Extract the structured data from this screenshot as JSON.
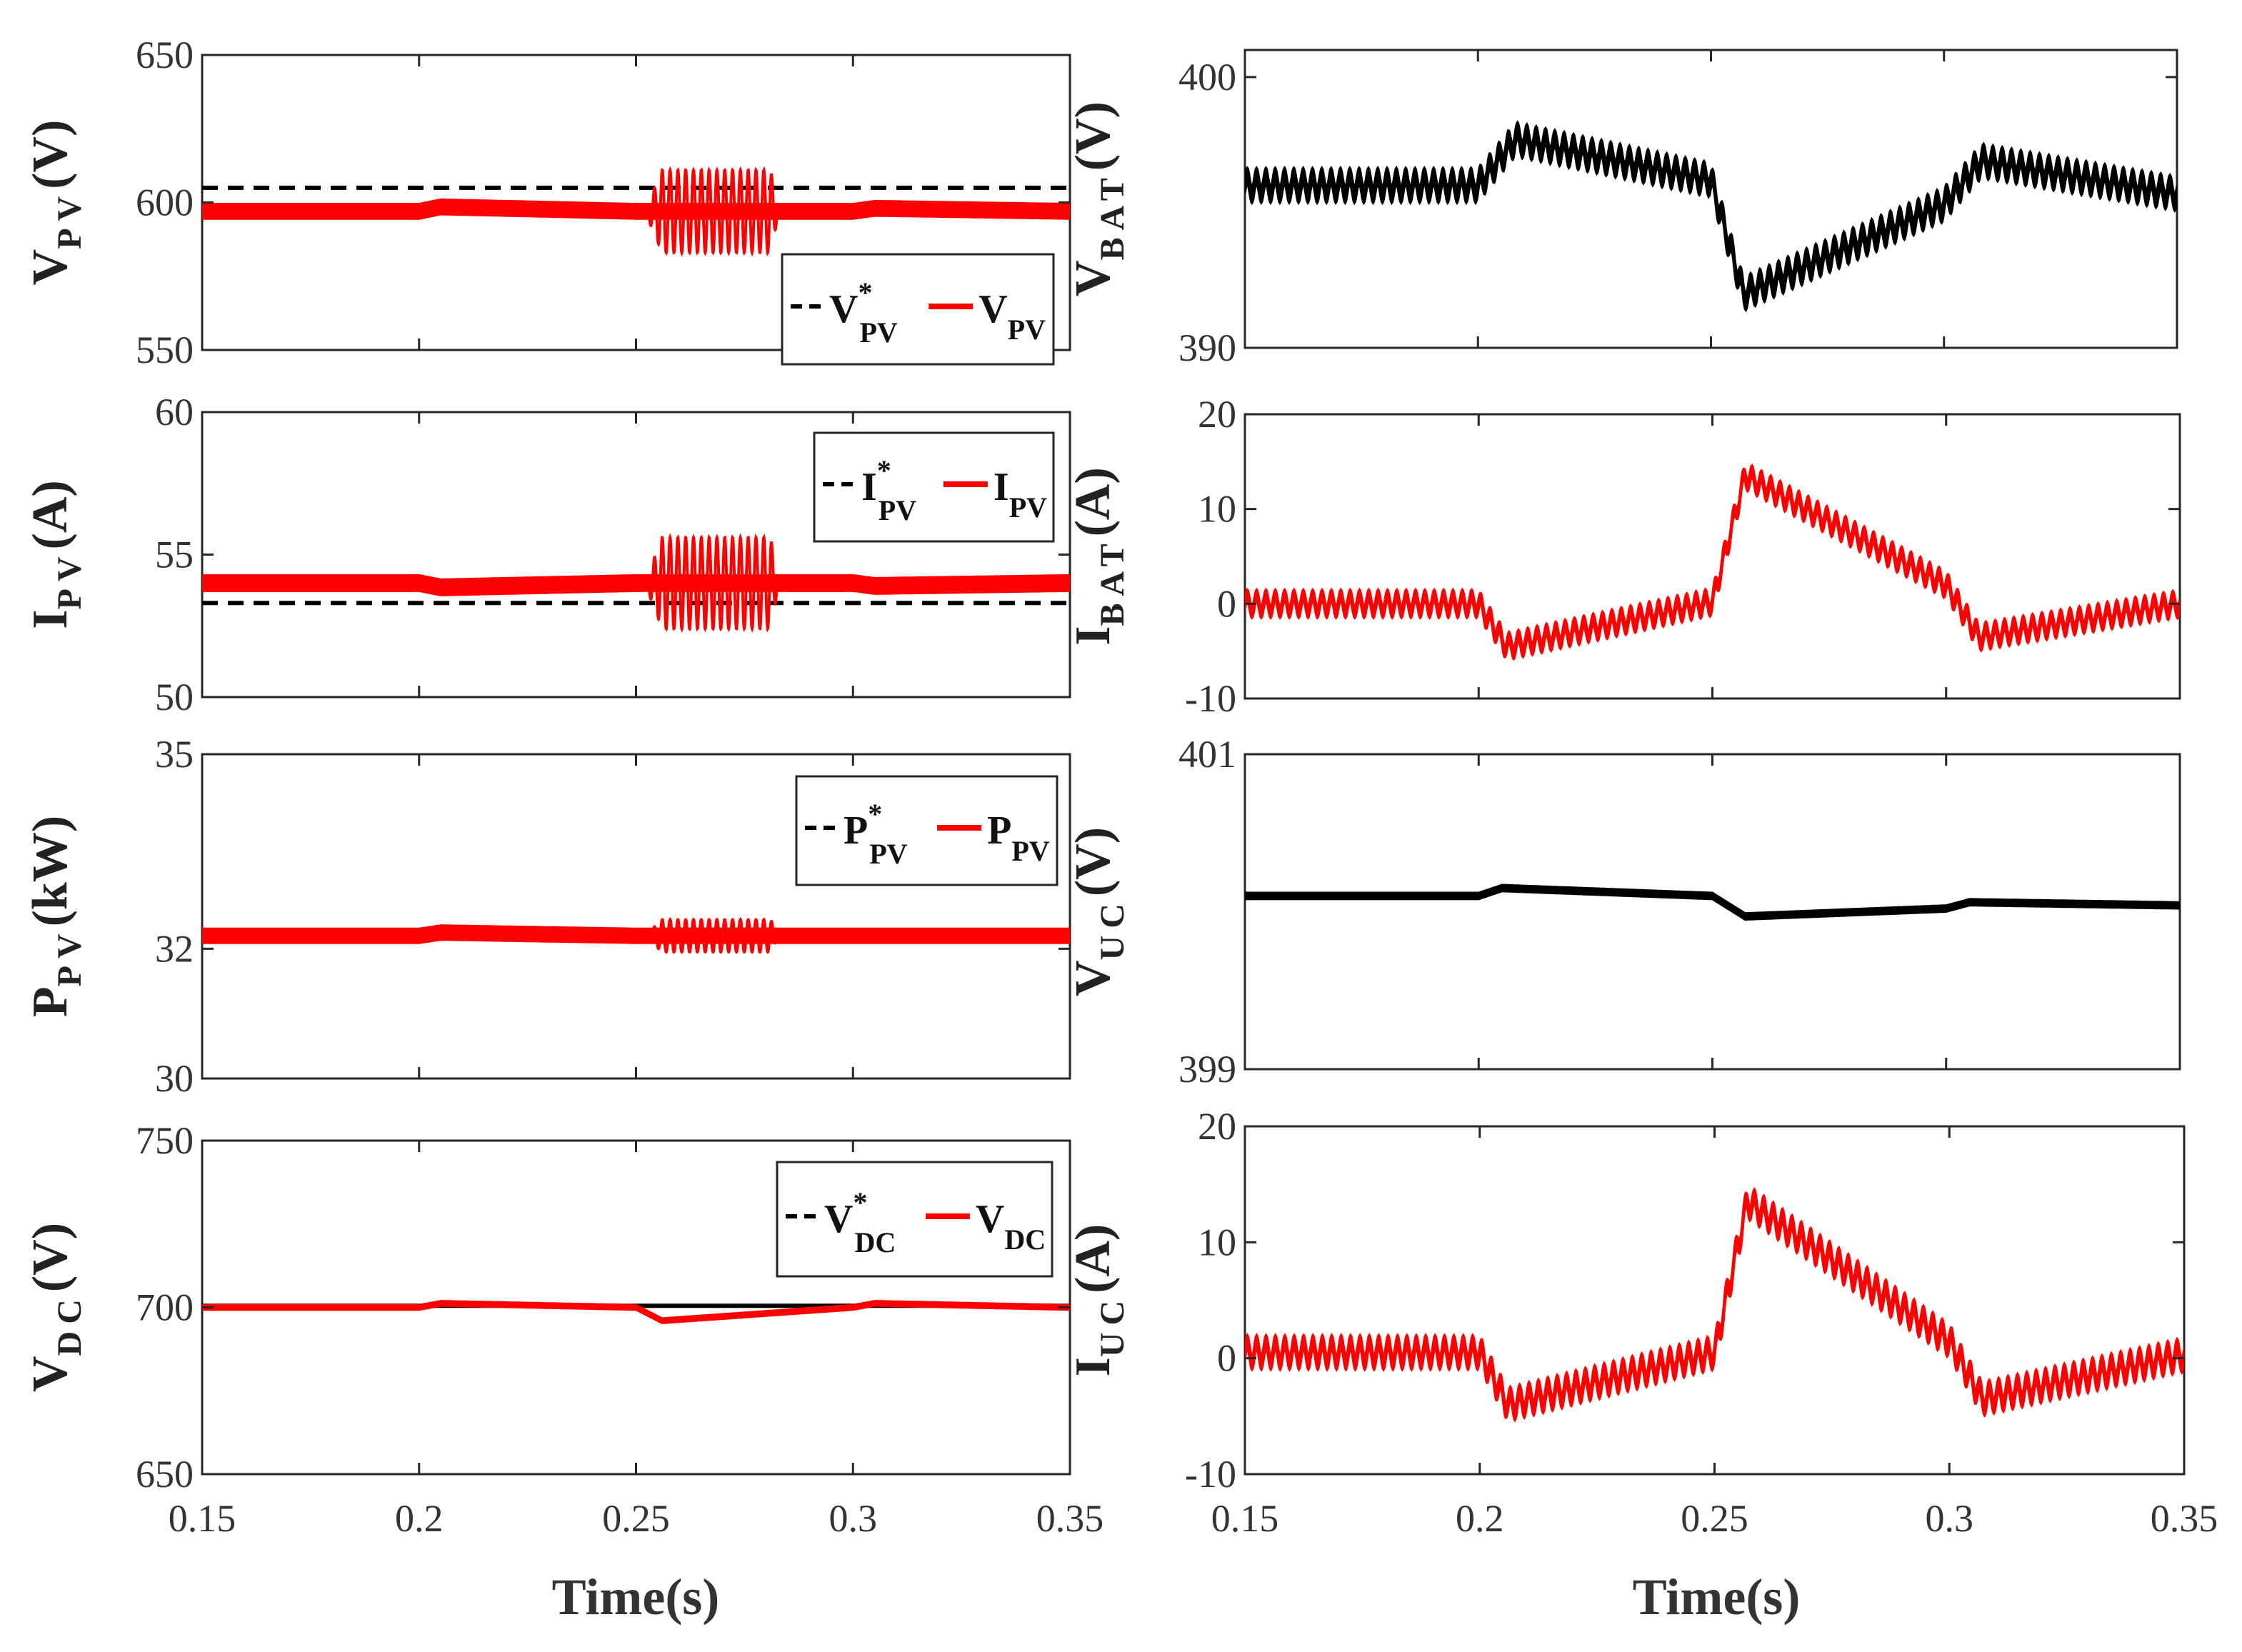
{
  "figure": {
    "x_label": "Time(s)"
  },
  "chart_data": [
    {
      "id": "vpv",
      "type": "line",
      "ylabel_main": "V",
      "ylabel_sub": "PV",
      "ylabel_unit": "(V)",
      "xlim": [
        0.15,
        0.35
      ],
      "ylim": [
        550,
        650
      ],
      "x_ticks": [
        "0.15",
        "0.2",
        "0.25",
        "0.3",
        "0.35"
      ],
      "y_ticks": [
        "650",
        "600",
        "550"
      ],
      "show_x_ticks": false,
      "legend": {
        "position": "bottom-right",
        "ref_main": "V",
        "ref_sup": "*",
        "ref_sub": "PV",
        "meas_main": "V",
        "meas_sub": "PV"
      },
      "series": [
        {
          "name": "V*PV",
          "style": "dashed",
          "color": "#000000",
          "points": [
            [
              0.15,
              605
            ],
            [
              0.35,
              605
            ]
          ]
        },
        {
          "name": "VPV",
          "style": "solid",
          "color": "#ff0000",
          "points": [
            [
              0.15,
              597
            ],
            [
              0.2,
              597
            ],
            [
              0.205,
              598.5
            ],
            [
              0.25,
              597
            ],
            [
              0.3,
              597
            ],
            [
              0.305,
              598
            ],
            [
              0.35,
              597
            ]
          ],
          "band": 5,
          "bursts": [
            {
              "from": 0.252,
              "to": 0.283,
              "amp": 14,
              "osc_period": 0.0018
            }
          ]
        }
      ]
    },
    {
      "id": "vbat",
      "type": "line",
      "ylabel_main": "V",
      "ylabel_sub": "BAT",
      "ylabel_unit": "(V)",
      "xlim": [
        0.15,
        0.35
      ],
      "ylim": [
        390,
        401
      ],
      "x_ticks": [
        "0.15",
        "0.2",
        "0.25",
        "0.3",
        "0.35"
      ],
      "y_ticks": [
        "400",
        "390"
      ],
      "show_x_ticks": false,
      "series": [
        {
          "name": "VBAT",
          "style": "solid",
          "color": "#000000",
          "points": [
            [
              0.15,
              396
            ],
            [
              0.2,
              396
            ],
            [
              0.208,
              397.7
            ],
            [
              0.25,
              396.2
            ],
            [
              0.257,
              392
            ],
            [
              0.3,
              395.3
            ],
            [
              0.308,
              396.9
            ],
            [
              0.35,
              395.7
            ]
          ],
          "band": 0.6,
          "ripple": 0.35,
          "ripple_period": 0.002
        }
      ]
    },
    {
      "id": "ipv",
      "type": "line",
      "ylabel_main": "I",
      "ylabel_sub": "PV",
      "ylabel_unit": "(A)",
      "xlim": [
        0.15,
        0.35
      ],
      "ylim": [
        50,
        60
      ],
      "x_ticks": [
        "0.15",
        "0.2",
        "0.25",
        "0.3",
        "0.35"
      ],
      "y_ticks": [
        "60",
        "55",
        "50"
      ],
      "show_x_ticks": false,
      "legend": {
        "position": "top-right",
        "ref_main": "I",
        "ref_sup": "*",
        "ref_sub": "PV",
        "meas_main": "I",
        "meas_sub": "PV"
      },
      "series": [
        {
          "name": "I*PV",
          "style": "dashed",
          "color": "#000000",
          "points": [
            [
              0.15,
              53.3
            ],
            [
              0.35,
              53.3
            ]
          ]
        },
        {
          "name": "IPV",
          "style": "solid",
          "color": "#ff0000",
          "points": [
            [
              0.15,
              54
            ],
            [
              0.2,
              54
            ],
            [
              0.205,
              53.85
            ],
            [
              0.25,
              54
            ],
            [
              0.3,
              54
            ],
            [
              0.305,
              53.9
            ],
            [
              0.35,
              54
            ]
          ],
          "band": 0.55,
          "bursts": [
            {
              "from": 0.252,
              "to": 0.283,
              "amp": 1.6,
              "osc_period": 0.0018
            }
          ]
        }
      ]
    },
    {
      "id": "ibat",
      "type": "line",
      "ylabel_main": "I",
      "ylabel_sub": "BAT",
      "ylabel_unit": "(A)",
      "xlim": [
        0.15,
        0.35
      ],
      "ylim": [
        -10,
        20
      ],
      "x_ticks": [
        "0.15",
        "0.2",
        "0.25",
        "0.3",
        "0.35"
      ],
      "y_ticks": [
        "20",
        "10",
        "0",
        "-10"
      ],
      "show_x_ticks": false,
      "series": [
        {
          "name": "IBAT",
          "style": "solid",
          "color": "#ff0000",
          "points": [
            [
              0.15,
              0
            ],
            [
              0.2,
              0
            ],
            [
              0.206,
              -4.5
            ],
            [
              0.25,
              0.2
            ],
            [
              0.257,
              13.5
            ],
            [
              0.3,
              2
            ],
            [
              0.307,
              -3.5
            ],
            [
              0.35,
              0
            ]
          ],
          "band": 1.2,
          "ripple": 0.9,
          "ripple_period": 0.002
        }
      ]
    },
    {
      "id": "ppv",
      "type": "line",
      "ylabel_main": "P",
      "ylabel_sub": "PV",
      "ylabel_unit": "(kW)",
      "xlim": [
        0.15,
        0.35
      ],
      "ylim": [
        30,
        35
      ],
      "x_ticks": [
        "0.15",
        "0.2",
        "0.25",
        "0.3",
        "0.35"
      ],
      "y_ticks": [
        "35",
        "32",
        "30"
      ],
      "y_tick_values": [
        35,
        32,
        30
      ],
      "show_x_ticks": false,
      "legend": {
        "position": "top-right",
        "ref_main": "P",
        "ref_sup": "*",
        "ref_sub": "PV",
        "meas_main": "P",
        "meas_sub": "PV"
      },
      "series": [
        {
          "name": "P*PV",
          "style": "dashed",
          "color": "#000000",
          "points": [
            [
              0.15,
              32.2
            ],
            [
              0.35,
              32.2
            ]
          ]
        },
        {
          "name": "PPV",
          "style": "solid",
          "color": "#ff0000",
          "points": [
            [
              0.15,
              32.2
            ],
            [
              0.2,
              32.2
            ],
            [
              0.205,
              32.25
            ],
            [
              0.25,
              32.2
            ],
            [
              0.35,
              32.2
            ]
          ],
          "band": 0.22,
          "bursts": [
            {
              "from": 0.252,
              "to": 0.283,
              "amp": 0.25,
              "osc_period": 0.0018
            }
          ]
        }
      ]
    },
    {
      "id": "vuc",
      "type": "line",
      "ylabel_main": "V",
      "ylabel_sub": "UC",
      "ylabel_unit": "(V)",
      "xlim": [
        0.15,
        0.35
      ],
      "ylim": [
        399,
        401
      ],
      "x_ticks": [
        "0.15",
        "0.2",
        "0.25",
        "0.3",
        "0.35"
      ],
      "y_ticks": [
        "401",
        "399"
      ],
      "show_x_ticks": false,
      "series": [
        {
          "name": "VUC",
          "style": "solid",
          "color": "#000000",
          "points": [
            [
              0.15,
              400.1
            ],
            [
              0.2,
              400.1
            ],
            [
              0.205,
              400.15
            ],
            [
              0.25,
              400.1
            ],
            [
              0.257,
              399.97
            ],
            [
              0.3,
              400.02
            ],
            [
              0.305,
              400.06
            ],
            [
              0.35,
              400.04
            ]
          ],
          "band": 0.04
        }
      ]
    },
    {
      "id": "vdc",
      "type": "line",
      "ylabel_main": "V",
      "ylabel_sub": "DC",
      "ylabel_unit": "(V)",
      "xlim": [
        0.15,
        0.35
      ],
      "ylim": [
        650,
        750
      ],
      "x_ticks": [
        "0.15",
        "0.2",
        "0.25",
        "0.3",
        "0.35"
      ],
      "y_ticks": [
        "750",
        "700",
        "650"
      ],
      "show_x_ticks": true,
      "legend": {
        "position": "top-right",
        "ref_main": "V",
        "ref_sup": "*",
        "ref_sub": "DC",
        "meas_main": "V",
        "meas_sub": "DC"
      },
      "series": [
        {
          "name": "V*DC",
          "style": "solid",
          "color": "#000000",
          "points": [
            [
              0.15,
              700.5
            ],
            [
              0.35,
              700.5
            ]
          ]
        },
        {
          "name": "VDC",
          "style": "solid",
          "color": "#ff0000",
          "points": [
            [
              0.15,
              700
            ],
            [
              0.2,
              700
            ],
            [
              0.205,
              701.2
            ],
            [
              0.25,
              700
            ],
            [
              0.256,
              696
            ],
            [
              0.3,
              700
            ],
            [
              0.305,
              701.2
            ],
            [
              0.35,
              700
            ]
          ],
          "band": 1.4
        }
      ]
    },
    {
      "id": "iuc",
      "type": "line",
      "ylabel_main": "I",
      "ylabel_sub": "UC",
      "ylabel_unit": "(A)",
      "xlim": [
        0.15,
        0.35
      ],
      "ylim": [
        -10,
        20
      ],
      "x_ticks": [
        "0.15",
        "0.2",
        "0.25",
        "0.3",
        "0.35"
      ],
      "y_ticks": [
        "20",
        "10",
        "0",
        "-10"
      ],
      "show_x_ticks": true,
      "series": [
        {
          "name": "IUC",
          "style": "solid",
          "color": "#ff0000",
          "points": [
            [
              0.15,
              0.5
            ],
            [
              0.2,
              0.5
            ],
            [
              0.206,
              -4
            ],
            [
              0.25,
              0.5
            ],
            [
              0.257,
              13.5
            ],
            [
              0.3,
              1.5
            ],
            [
              0.307,
              -3.5
            ],
            [
              0.35,
              0.3
            ]
          ],
          "band": 1.2,
          "ripple": 0.9,
          "ripple_period": 0.002
        }
      ]
    }
  ]
}
